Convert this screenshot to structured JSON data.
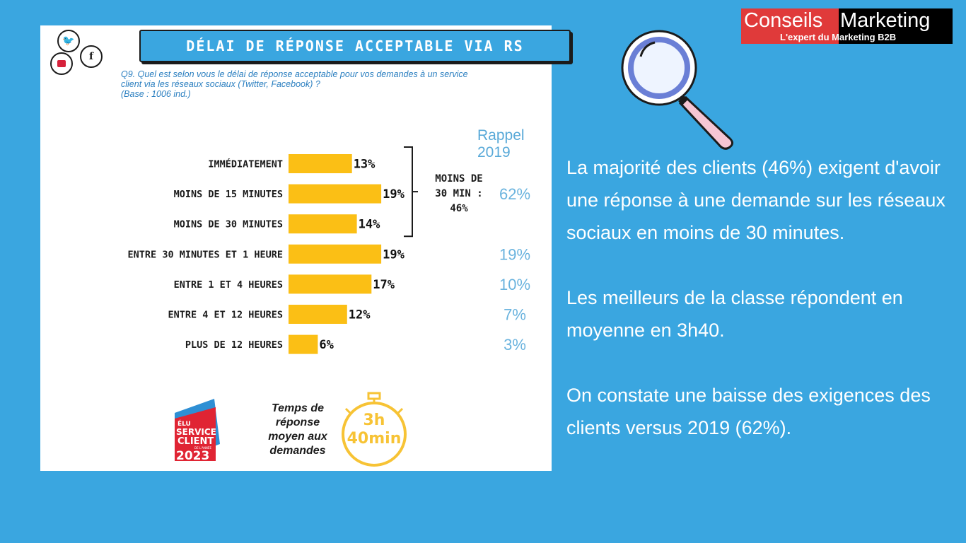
{
  "title": "DÉLAI DE RÉPONSE ACCEPTABLE VIA RS",
  "question_lines": [
    "Q9. Quel est selon vous le délai de réponse acceptable pour vos demandes à un service",
    "client via les réseaux sociaux (Twitter, Facebook) ?",
    "(Base : 1006 ind.)"
  ],
  "rappel_label": "Rappel 2019",
  "chart_data": {
    "type": "bar",
    "orientation": "horizontal",
    "categories": [
      "IMMÉDIATEMENT",
      "MOINS DE 15 MINUTES",
      "MOINS DE 30 MINUTES",
      "ENTRE 30 MINUTES ET 1 HEURE",
      "ENTRE 1 ET 4 HEURES",
      "ENTRE 4 ET 12 HEURES",
      "PLUS DE 12 HEURES"
    ],
    "values": [
      13,
      19,
      14,
      19,
      17,
      12,
      6
    ],
    "value_labels": [
      "13%",
      "19%",
      "14%",
      "19%",
      "17%",
      "12%",
      "6%"
    ],
    "bar_color": "#fbbf15",
    "rappel_2019": [
      {
        "category_index": 1,
        "label": "62%"
      },
      {
        "category_index": 3,
        "label": "19%"
      },
      {
        "category_index": 4,
        "label": "10%"
      },
      {
        "category_index": 5,
        "label": "7%"
      },
      {
        "category_index": 6,
        "label": "3%"
      }
    ],
    "bracket_label_lines": [
      "MOINS DE",
      "30 MIN :",
      "46%"
    ]
  },
  "average": {
    "text_lines": [
      "Temps de",
      "réponse",
      "moyen aux",
      "demandes"
    ],
    "timer_lines": [
      "3h",
      "40min"
    ]
  },
  "badge": {
    "lines": [
      "ÉLU",
      "SERVICE",
      "CLIENT",
      "DE L'ANNÉE",
      "2023"
    ]
  },
  "logo": {
    "word1": "Conseils",
    "word2": "Marketing",
    "subtitle": "L'expert du Marketing B2B"
  },
  "paragraphs": [
    "La majorité des clients (46%) exigent d'avoir une réponse à une demande sur les réseaux sociaux en moins de 30 minutes.",
    "Les meilleurs de la classe répondent en moyenne en 3h40.",
    "On constate une baisse des exigences des clients versus 2019 (62%)."
  ],
  "colors": {
    "background": "#3aa6e0",
    "logo_red": "#e03a3a",
    "timer": "#f7c335"
  },
  "icons": [
    "twitter-icon",
    "facebook-icon",
    "instagram-icon",
    "magnifying-glass-icon",
    "stopwatch-icon"
  ]
}
